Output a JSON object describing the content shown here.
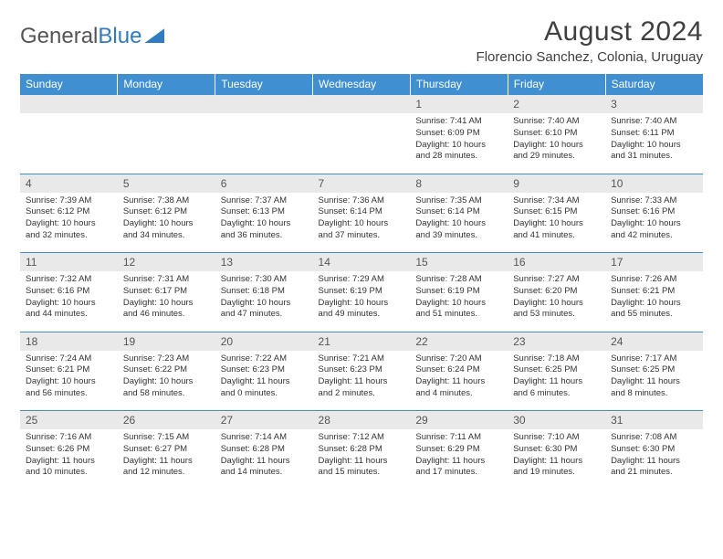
{
  "brand": {
    "part1": "General",
    "part2": "Blue"
  },
  "title": "August 2024",
  "location": "Florencio Sanchez, Colonia, Uruguay",
  "colors": {
    "header_bg": "#3f8fd1",
    "header_text": "#ffffff",
    "daynum_bg": "#e9e9e9",
    "border": "#3f8fd1",
    "body_text": "#333333",
    "brand_gray": "#555555",
    "brand_blue": "#2f7cc0"
  },
  "day_headers": [
    "Sunday",
    "Monday",
    "Tuesday",
    "Wednesday",
    "Thursday",
    "Friday",
    "Saturday"
  ],
  "weeks": [
    {
      "nums": [
        "",
        "",
        "",
        "",
        "1",
        "2",
        "3"
      ],
      "cells": [
        null,
        null,
        null,
        null,
        {
          "sunrise": "Sunrise: 7:41 AM",
          "sunset": "Sunset: 6:09 PM",
          "day1": "Daylight: 10 hours",
          "day2": "and 28 minutes."
        },
        {
          "sunrise": "Sunrise: 7:40 AM",
          "sunset": "Sunset: 6:10 PM",
          "day1": "Daylight: 10 hours",
          "day2": "and 29 minutes."
        },
        {
          "sunrise": "Sunrise: 7:40 AM",
          "sunset": "Sunset: 6:11 PM",
          "day1": "Daylight: 10 hours",
          "day2": "and 31 minutes."
        }
      ]
    },
    {
      "nums": [
        "4",
        "5",
        "6",
        "7",
        "8",
        "9",
        "10"
      ],
      "cells": [
        {
          "sunrise": "Sunrise: 7:39 AM",
          "sunset": "Sunset: 6:12 PM",
          "day1": "Daylight: 10 hours",
          "day2": "and 32 minutes."
        },
        {
          "sunrise": "Sunrise: 7:38 AM",
          "sunset": "Sunset: 6:12 PM",
          "day1": "Daylight: 10 hours",
          "day2": "and 34 minutes."
        },
        {
          "sunrise": "Sunrise: 7:37 AM",
          "sunset": "Sunset: 6:13 PM",
          "day1": "Daylight: 10 hours",
          "day2": "and 36 minutes."
        },
        {
          "sunrise": "Sunrise: 7:36 AM",
          "sunset": "Sunset: 6:14 PM",
          "day1": "Daylight: 10 hours",
          "day2": "and 37 minutes."
        },
        {
          "sunrise": "Sunrise: 7:35 AM",
          "sunset": "Sunset: 6:14 PM",
          "day1": "Daylight: 10 hours",
          "day2": "and 39 minutes."
        },
        {
          "sunrise": "Sunrise: 7:34 AM",
          "sunset": "Sunset: 6:15 PM",
          "day1": "Daylight: 10 hours",
          "day2": "and 41 minutes."
        },
        {
          "sunrise": "Sunrise: 7:33 AM",
          "sunset": "Sunset: 6:16 PM",
          "day1": "Daylight: 10 hours",
          "day2": "and 42 minutes."
        }
      ]
    },
    {
      "nums": [
        "11",
        "12",
        "13",
        "14",
        "15",
        "16",
        "17"
      ],
      "cells": [
        {
          "sunrise": "Sunrise: 7:32 AM",
          "sunset": "Sunset: 6:16 PM",
          "day1": "Daylight: 10 hours",
          "day2": "and 44 minutes."
        },
        {
          "sunrise": "Sunrise: 7:31 AM",
          "sunset": "Sunset: 6:17 PM",
          "day1": "Daylight: 10 hours",
          "day2": "and 46 minutes."
        },
        {
          "sunrise": "Sunrise: 7:30 AM",
          "sunset": "Sunset: 6:18 PM",
          "day1": "Daylight: 10 hours",
          "day2": "and 47 minutes."
        },
        {
          "sunrise": "Sunrise: 7:29 AM",
          "sunset": "Sunset: 6:19 PM",
          "day1": "Daylight: 10 hours",
          "day2": "and 49 minutes."
        },
        {
          "sunrise": "Sunrise: 7:28 AM",
          "sunset": "Sunset: 6:19 PM",
          "day1": "Daylight: 10 hours",
          "day2": "and 51 minutes."
        },
        {
          "sunrise": "Sunrise: 7:27 AM",
          "sunset": "Sunset: 6:20 PM",
          "day1": "Daylight: 10 hours",
          "day2": "and 53 minutes."
        },
        {
          "sunrise": "Sunrise: 7:26 AM",
          "sunset": "Sunset: 6:21 PM",
          "day1": "Daylight: 10 hours",
          "day2": "and 55 minutes."
        }
      ]
    },
    {
      "nums": [
        "18",
        "19",
        "20",
        "21",
        "22",
        "23",
        "24"
      ],
      "cells": [
        {
          "sunrise": "Sunrise: 7:24 AM",
          "sunset": "Sunset: 6:21 PM",
          "day1": "Daylight: 10 hours",
          "day2": "and 56 minutes."
        },
        {
          "sunrise": "Sunrise: 7:23 AM",
          "sunset": "Sunset: 6:22 PM",
          "day1": "Daylight: 10 hours",
          "day2": "and 58 minutes."
        },
        {
          "sunrise": "Sunrise: 7:22 AM",
          "sunset": "Sunset: 6:23 PM",
          "day1": "Daylight: 11 hours",
          "day2": "and 0 minutes."
        },
        {
          "sunrise": "Sunrise: 7:21 AM",
          "sunset": "Sunset: 6:23 PM",
          "day1": "Daylight: 11 hours",
          "day2": "and 2 minutes."
        },
        {
          "sunrise": "Sunrise: 7:20 AM",
          "sunset": "Sunset: 6:24 PM",
          "day1": "Daylight: 11 hours",
          "day2": "and 4 minutes."
        },
        {
          "sunrise": "Sunrise: 7:18 AM",
          "sunset": "Sunset: 6:25 PM",
          "day1": "Daylight: 11 hours",
          "day2": "and 6 minutes."
        },
        {
          "sunrise": "Sunrise: 7:17 AM",
          "sunset": "Sunset: 6:25 PM",
          "day1": "Daylight: 11 hours",
          "day2": "and 8 minutes."
        }
      ]
    },
    {
      "nums": [
        "25",
        "26",
        "27",
        "28",
        "29",
        "30",
        "31"
      ],
      "cells": [
        {
          "sunrise": "Sunrise: 7:16 AM",
          "sunset": "Sunset: 6:26 PM",
          "day1": "Daylight: 11 hours",
          "day2": "and 10 minutes."
        },
        {
          "sunrise": "Sunrise: 7:15 AM",
          "sunset": "Sunset: 6:27 PM",
          "day1": "Daylight: 11 hours",
          "day2": "and 12 minutes."
        },
        {
          "sunrise": "Sunrise: 7:14 AM",
          "sunset": "Sunset: 6:28 PM",
          "day1": "Daylight: 11 hours",
          "day2": "and 14 minutes."
        },
        {
          "sunrise": "Sunrise: 7:12 AM",
          "sunset": "Sunset: 6:28 PM",
          "day1": "Daylight: 11 hours",
          "day2": "and 15 minutes."
        },
        {
          "sunrise": "Sunrise: 7:11 AM",
          "sunset": "Sunset: 6:29 PM",
          "day1": "Daylight: 11 hours",
          "day2": "and 17 minutes."
        },
        {
          "sunrise": "Sunrise: 7:10 AM",
          "sunset": "Sunset: 6:30 PM",
          "day1": "Daylight: 11 hours",
          "day2": "and 19 minutes."
        },
        {
          "sunrise": "Sunrise: 7:08 AM",
          "sunset": "Sunset: 6:30 PM",
          "day1": "Daylight: 11 hours",
          "day2": "and 21 minutes."
        }
      ]
    }
  ]
}
